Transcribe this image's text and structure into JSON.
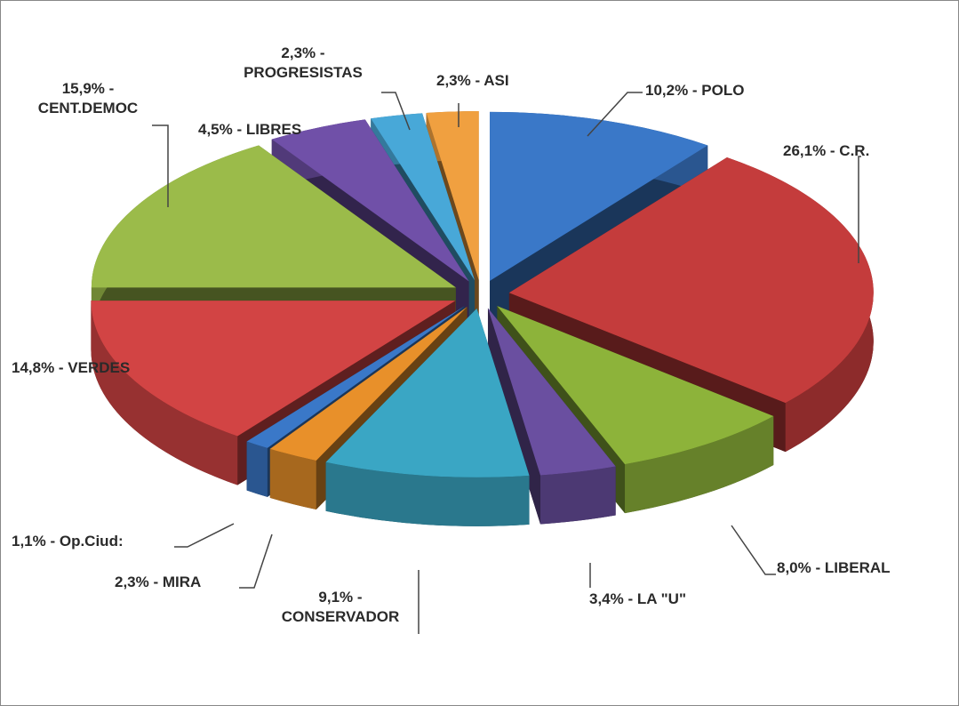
{
  "chart_data": {
    "type": "pie",
    "values": [
      10.2,
      26.1,
      8.0,
      3.4,
      9.1,
      2.3,
      1.1,
      14.8,
      15.9,
      4.5,
      2.3,
      2.3
    ],
    "value_labels": [
      "10,2% - POLO",
      "26,1% - C.R.",
      "8,0% - LIBERAL",
      "3,4% - LA \"U\"",
      "9,1% -\nCONSERVADOR",
      "2,3% - MIRA",
      "1,1% - Op.Ciud:",
      "14,8% - VERDES",
      "15,9% -\nCENT.DEMOC",
      "4,5% - LIBRES",
      "2,3% -\nPROGRESISTAS",
      "2,3% - ASI"
    ],
    "colors": [
      "#3a78c8",
      "#c43c3c",
      "#8db33a",
      "#6a4fa0",
      "#3aa6c4",
      "#e8902a",
      "#3a78c8",
      "#d24444",
      "#9bbb4a",
      "#7050a8",
      "#48a8d8",
      "#f0a040"
    ]
  }
}
